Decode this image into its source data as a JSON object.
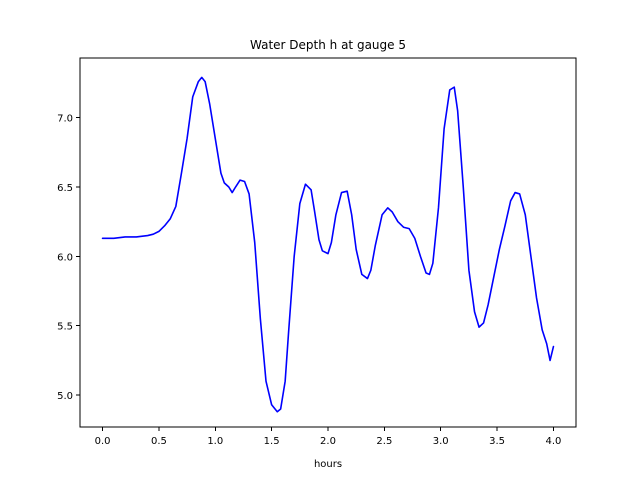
{
  "chart_data": {
    "type": "line",
    "title": "Water Depth h at gauge 5",
    "xlabel": "hours",
    "ylabel": "",
    "xlim": [
      -0.2,
      4.2
    ],
    "ylim": [
      4.77,
      7.43
    ],
    "xticks": [
      0.0,
      0.5,
      1.0,
      1.5,
      2.0,
      2.5,
      3.0,
      3.5,
      4.0
    ],
    "xtick_labels": [
      "0.0",
      "0.5",
      "1.0",
      "1.5",
      "2.0",
      "2.5",
      "3.0",
      "3.5",
      "4.0"
    ],
    "yticks": [
      5.0,
      5.5,
      6.0,
      6.5,
      7.0
    ],
    "ytick_labels": [
      "5.0",
      "5.5",
      "6.0",
      "6.5",
      "7.0"
    ],
    "grid": false,
    "series": [
      {
        "color": "#0000ff",
        "x": [
          0.0,
          0.1,
          0.2,
          0.3,
          0.4,
          0.45,
          0.5,
          0.55,
          0.6,
          0.65,
          0.7,
          0.75,
          0.8,
          0.85,
          0.88,
          0.91,
          0.95,
          1.0,
          1.05,
          1.08,
          1.12,
          1.15,
          1.18,
          1.22,
          1.26,
          1.3,
          1.35,
          1.4,
          1.45,
          1.5,
          1.55,
          1.58,
          1.62,
          1.65,
          1.7,
          1.75,
          1.8,
          1.85,
          1.88,
          1.92,
          1.95,
          2.0,
          2.03,
          2.07,
          2.12,
          2.17,
          2.21,
          2.25,
          2.3,
          2.35,
          2.38,
          2.42,
          2.48,
          2.53,
          2.57,
          2.62,
          2.67,
          2.72,
          2.77,
          2.82,
          2.87,
          2.9,
          2.93,
          2.98,
          3.03,
          3.08,
          3.12,
          3.15,
          3.2,
          3.25,
          3.3,
          3.34,
          3.38,
          3.42,
          3.47,
          3.52,
          3.57,
          3.62,
          3.66,
          3.7,
          3.75,
          3.8,
          3.85,
          3.9,
          3.94,
          3.97,
          4.0
        ],
        "y": [
          6.13,
          6.13,
          6.14,
          6.14,
          6.15,
          6.16,
          6.18,
          6.22,
          6.27,
          6.36,
          6.6,
          6.85,
          7.15,
          7.26,
          7.29,
          7.26,
          7.1,
          6.85,
          6.6,
          6.53,
          6.5,
          6.46,
          6.5,
          6.55,
          6.54,
          6.45,
          6.1,
          5.55,
          5.1,
          4.93,
          4.88,
          4.9,
          5.1,
          5.45,
          6.0,
          6.38,
          6.52,
          6.48,
          6.33,
          6.12,
          6.04,
          6.02,
          6.1,
          6.3,
          6.46,
          6.47,
          6.3,
          6.05,
          5.87,
          5.84,
          5.9,
          6.08,
          6.3,
          6.35,
          6.32,
          6.25,
          6.21,
          6.2,
          6.13,
          6.0,
          5.88,
          5.87,
          5.95,
          6.35,
          6.92,
          7.2,
          7.22,
          7.05,
          6.5,
          5.9,
          5.6,
          5.49,
          5.52,
          5.65,
          5.85,
          6.05,
          6.22,
          6.4,
          6.46,
          6.45,
          6.3,
          6.0,
          5.7,
          5.47,
          5.37,
          5.25,
          5.35
        ]
      }
    ]
  }
}
